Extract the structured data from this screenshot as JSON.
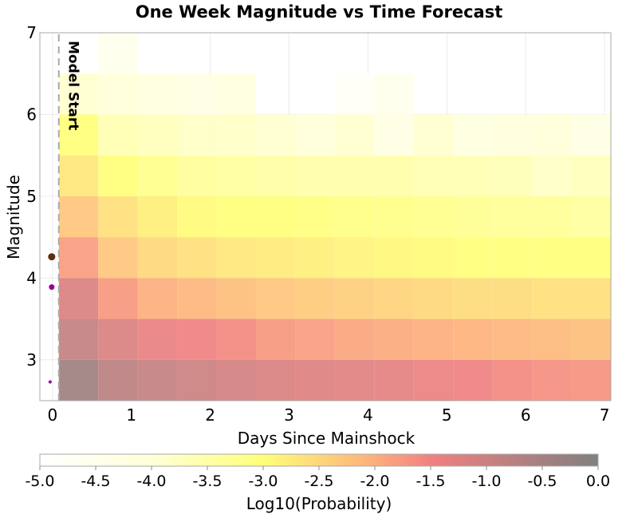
{
  "chart_data": {
    "type": "heatmap",
    "title": "One Week Magnitude vs Time Forecast",
    "xlabel": "Days Since Mainshock",
    "ylabel": "Magnitude",
    "xlim": [
      -0.16,
      7.08
    ],
    "ylim": [
      2.5,
      7
    ],
    "xticks": [
      "0",
      "1",
      "2",
      "3",
      "4",
      "5",
      "6",
      "7"
    ],
    "yticks": [
      "3",
      "4",
      "5",
      "6",
      "7"
    ],
    "grid": true,
    "x_bin_start": 0.08,
    "x_bin_width": 0.5,
    "y_bin_start": 2.5,
    "y_bin_width": 0.5,
    "rows_from_bottom": [
      [
        -0.4,
        -0.8,
        -0.9,
        -1.0,
        -1.1,
        -1.2,
        -1.25,
        -1.3,
        -1.35,
        -1.45,
        -1.5,
        -1.6,
        -1.65,
        -1.7
      ],
      [
        -0.9,
        -1.2,
        -1.4,
        -1.5,
        -1.6,
        -1.75,
        -1.8,
        -1.9,
        -1.95,
        -2.0,
        -2.05,
        -2.1,
        -2.15,
        -2.2
      ],
      [
        -1.2,
        -1.75,
        -2.0,
        -2.1,
        -2.2,
        -2.3,
        -2.35,
        -2.4,
        -2.45,
        -2.5,
        -2.55,
        -2.55,
        -2.6,
        -2.6
      ],
      [
        -1.8,
        -2.3,
        -2.5,
        -2.6,
        -2.7,
        -2.75,
        -2.8,
        -2.85,
        -2.9,
        -2.95,
        -3.0,
        -3.0,
        -3.0,
        -3.0
      ],
      [
        -2.3,
        -2.6,
        -2.8,
        -2.95,
        -3.0,
        -3.0,
        -3.05,
        -3.1,
        -3.15,
        -3.2,
        -3.25,
        -3.3,
        -3.3,
        -3.4
      ],
      [
        -2.7,
        -3.0,
        -3.2,
        -3.35,
        -3.4,
        -3.45,
        -3.5,
        -3.5,
        -3.5,
        -3.6,
        -3.6,
        -3.65,
        -3.8,
        -3.7
      ],
      [
        -3.0,
        -3.6,
        -3.7,
        -3.8,
        -3.8,
        -3.9,
        -4.0,
        -3.9,
        -4.3,
        -3.9,
        -4.2,
        -4.1,
        -4.0,
        -4.3
      ],
      [
        -3.9,
        -4.0,
        -4.2,
        -4.3,
        -4.2,
        null,
        null,
        -4.8,
        -4.5,
        null,
        null,
        null,
        null,
        null
      ],
      [
        null,
        -4.5,
        null,
        null,
        null,
        null,
        null,
        null,
        null,
        null,
        null,
        null,
        null,
        null
      ]
    ],
    "events": [
      {
        "x": -0.01,
        "y": 4.26,
        "color": "#5a3010",
        "size": "large"
      },
      {
        "x": -0.01,
        "y": 3.89,
        "color": "#990099",
        "size": "medium"
      },
      {
        "x": -0.03,
        "y": 2.73,
        "color": "#990099",
        "size": "small"
      }
    ],
    "model_start": {
      "x": 0.08,
      "label": "Model Start"
    },
    "colorbar": {
      "label": "Log10(Probability)",
      "range": [
        -5.0,
        0.0
      ],
      "ticks": [
        "-5.0",
        "-4.5",
        "-4.0",
        "-3.5",
        "-3.0",
        "-2.5",
        "-2.0",
        "-1.5",
        "-1.0",
        "-0.5",
        "0.0"
      ],
      "colormap": [
        {
          "value": -5.0,
          "color": "#ffffff"
        },
        {
          "value": -4.0,
          "color": "#ffffd8"
        },
        {
          "value": -3.0,
          "color": "#ffff78"
        },
        {
          "value": -2.0,
          "color": "#fdae7c"
        },
        {
          "value": -1.5,
          "color": "#f08080"
        },
        {
          "value": 0.0,
          "color": "#808080"
        }
      ]
    }
  }
}
